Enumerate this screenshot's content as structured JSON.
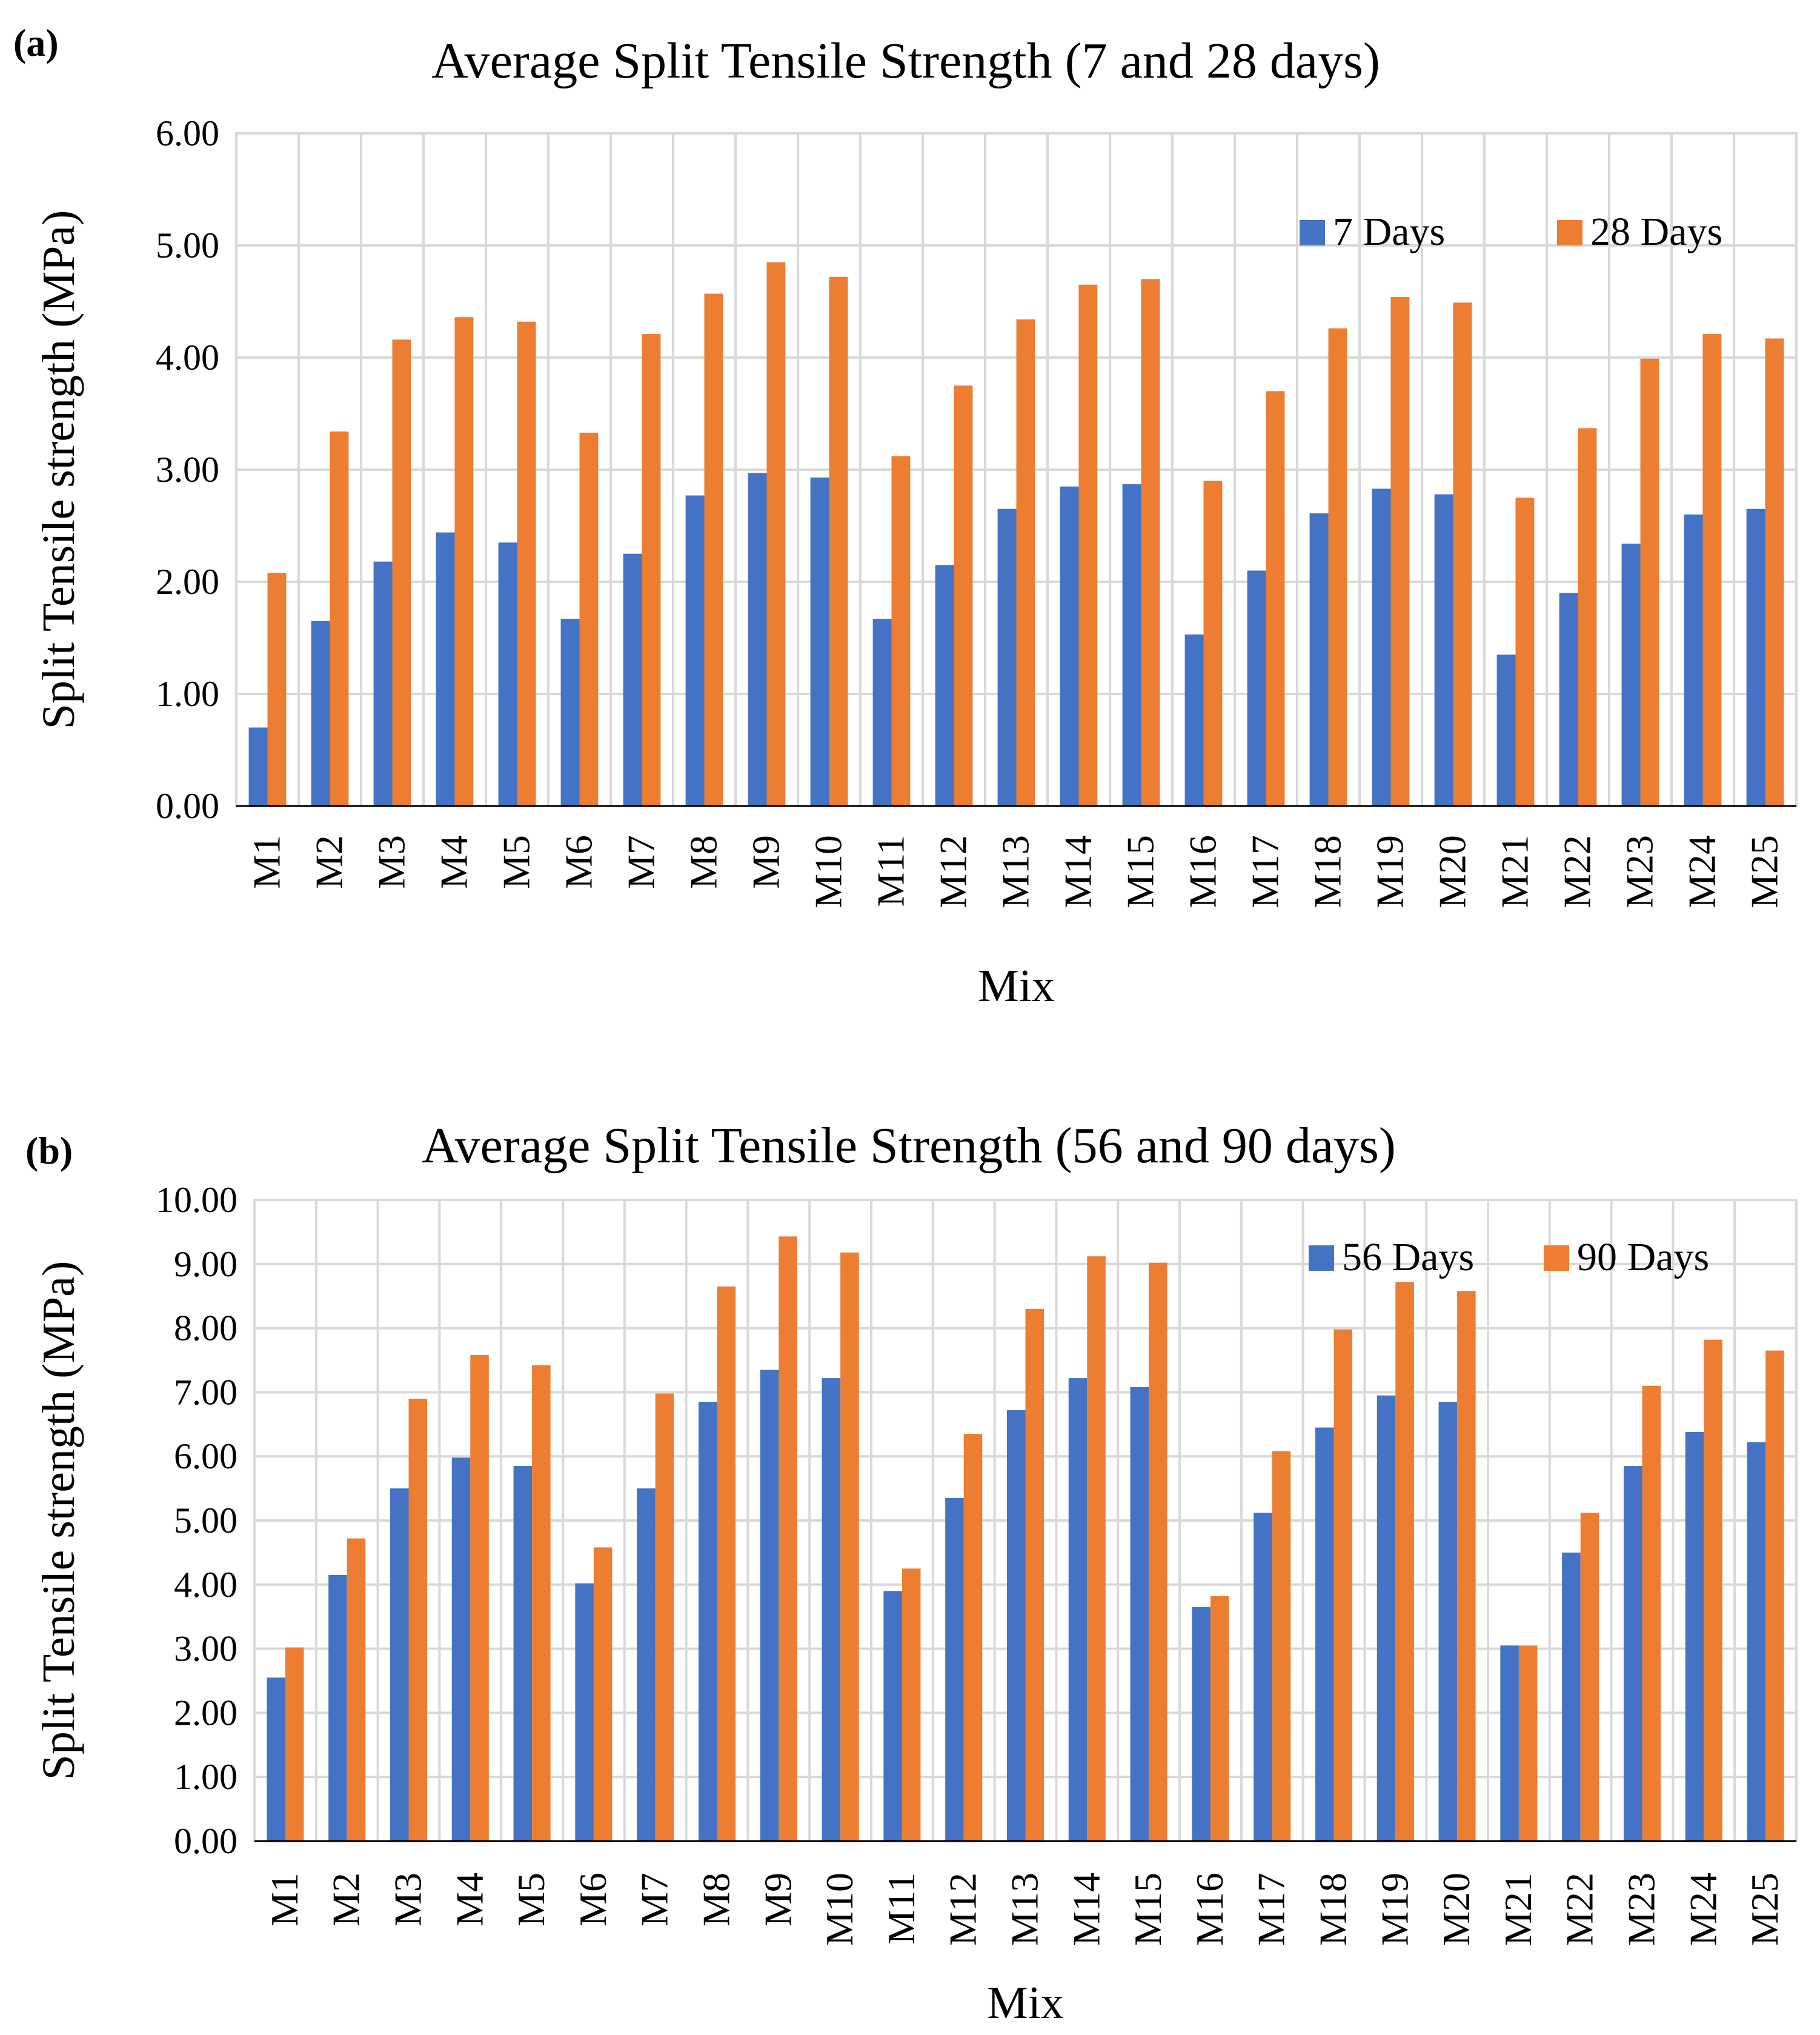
{
  "chart_data": [
    {
      "type": "bar",
      "panel_label": "(a)",
      "title": "Average Split Tensile Strength (7 and 28 days)",
      "xlabel": "Mix",
      "ylabel": "Split Tensile strength (MPa)",
      "ylim": [
        0,
        6
      ],
      "yticks": [
        "0.00",
        "1.00",
        "2.00",
        "3.00",
        "4.00",
        "5.00",
        "6.00"
      ],
      "grid": true,
      "legend_position": "top-right",
      "categories": [
        "M1",
        "M2",
        "M3",
        "M4",
        "M5",
        "M6",
        "M7",
        "M8",
        "M9",
        "M10",
        "M11",
        "M12",
        "M13",
        "M14",
        "M15",
        "M16",
        "M17",
        "M18",
        "M19",
        "M20",
        "M21",
        "M22",
        "M23",
        "M24",
        "M25"
      ],
      "series": [
        {
          "name": "7 Days",
          "color": "#4472c4",
          "values": [
            0.7,
            1.65,
            2.18,
            2.44,
            2.35,
            1.67,
            2.25,
            2.77,
            2.97,
            2.93,
            1.67,
            2.15,
            2.65,
            2.85,
            2.87,
            1.53,
            2.1,
            2.61,
            2.83,
            2.78,
            1.35,
            1.9,
            2.34,
            2.6,
            2.65
          ]
        },
        {
          "name": "28 Days",
          "color": "#ed7d31",
          "values": [
            2.08,
            3.34,
            4.16,
            4.36,
            4.32,
            3.33,
            4.21,
            4.57,
            4.85,
            4.72,
            3.12,
            3.75,
            4.34,
            4.65,
            4.7,
            2.9,
            3.7,
            4.26,
            4.54,
            4.49,
            2.75,
            3.37,
            3.99,
            4.21,
            4.17
          ]
        }
      ]
    },
    {
      "type": "bar",
      "panel_label": "(b)",
      "title": "Average Split Tensile Strength (56 and 90 days)",
      "xlabel": "Mix",
      "ylabel": "Split Tensile strength (MPa)",
      "ylim": [
        0,
        10
      ],
      "yticks": [
        "0.00",
        "1.00",
        "2.00",
        "3.00",
        "4.00",
        "5.00",
        "6.00",
        "7.00",
        "8.00",
        "9.00",
        "10.00"
      ],
      "grid": true,
      "legend_position": "top-right",
      "categories": [
        "M1",
        "M2",
        "M3",
        "M4",
        "M5",
        "M6",
        "M7",
        "M8",
        "M9",
        "M10",
        "M11",
        "M12",
        "M13",
        "M14",
        "M15",
        "M16",
        "M17",
        "M18",
        "M19",
        "M20",
        "M21",
        "M22",
        "M23",
        "M24",
        "M25"
      ],
      "series": [
        {
          "name": "56 Days",
          "color": "#4472c4",
          "values": [
            2.55,
            4.15,
            5.5,
            5.98,
            5.85,
            4.02,
            5.5,
            6.85,
            7.35,
            7.22,
            3.9,
            5.35,
            6.72,
            7.22,
            7.08,
            3.65,
            5.12,
            6.45,
            6.95,
            6.85,
            3.05,
            4.5,
            5.85,
            6.38,
            6.22
          ]
        },
        {
          "name": "90 Days",
          "color": "#ed7d31",
          "values": [
            3.02,
            4.72,
            6.9,
            7.58,
            7.42,
            4.58,
            6.98,
            8.65,
            9.43,
            9.18,
            4.25,
            6.35,
            8.3,
            9.12,
            9.02,
            3.82,
            6.08,
            7.98,
            8.72,
            8.58,
            3.05,
            5.12,
            7.1,
            7.82,
            7.65
          ]
        }
      ]
    }
  ]
}
